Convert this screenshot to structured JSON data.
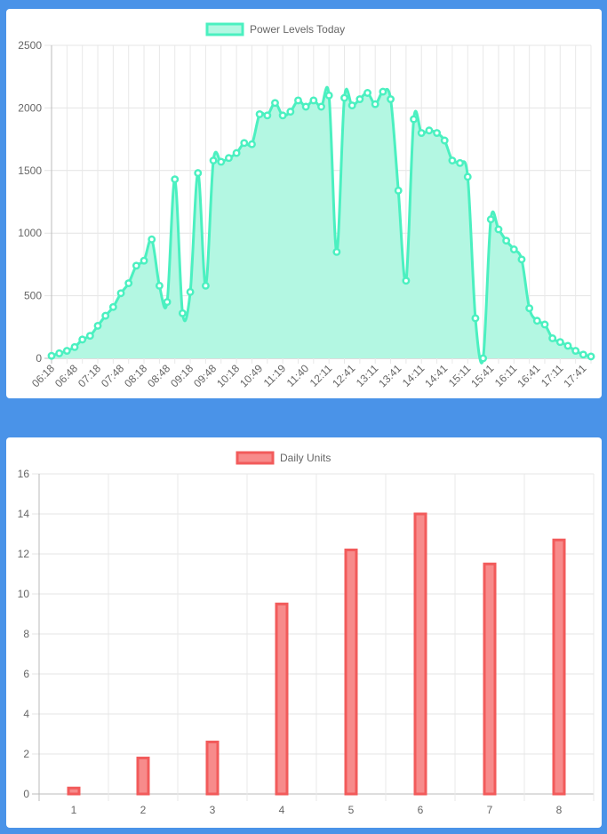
{
  "chart_data": [
    {
      "type": "area",
      "legend": "Power Levels Today",
      "colors": {
        "stroke": "#4bf0c0",
        "fill": "#b3f7e2"
      },
      "ylim": [
        0,
        2500
      ],
      "yticks": [
        0,
        500,
        1000,
        1500,
        2000,
        2500
      ],
      "x_tick_labels": [
        "06:18",
        "06:48",
        "07:18",
        "07:48",
        "08:18",
        "08:48",
        "09:18",
        "09:48",
        "10:18",
        "10:49",
        "11:19",
        "11:40",
        "12:11",
        "12:41",
        "13:11",
        "13:41",
        "14:11",
        "14:41",
        "15:11",
        "15:41",
        "16:11",
        "16:41",
        "17:11",
        "17:41"
      ],
      "values": [
        20,
        40,
        60,
        90,
        150,
        180,
        260,
        340,
        410,
        520,
        600,
        740,
        780,
        950,
        580,
        450,
        1430,
        360,
        530,
        1480,
        580,
        1580,
        1570,
        1600,
        1640,
        1720,
        1710,
        1950,
        1940,
        2040,
        1940,
        1970,
        2060,
        2010,
        2060,
        2010,
        2100,
        850,
        2080,
        2020,
        2070,
        2120,
        2030,
        2130,
        2070,
        1340,
        620,
        1910,
        1800,
        1820,
        1800,
        1740,
        1580,
        1560,
        1450,
        320,
        0,
        1110,
        1030,
        940,
        870,
        790,
        400,
        300,
        270,
        160,
        130,
        100,
        60,
        30,
        15
      ]
    },
    {
      "type": "bar",
      "legend": "Daily Units",
      "colors": {
        "stroke": "#f25b5b",
        "fill": "#f78b8b"
      },
      "ylim": [
        0,
        16
      ],
      "yticks": [
        0,
        2,
        4,
        6,
        8,
        10,
        12,
        14,
        16
      ],
      "categories": [
        "1",
        "2",
        "3",
        "4",
        "5",
        "6",
        "7",
        "8"
      ],
      "values": [
        0.3,
        1.8,
        2.6,
        9.5,
        12.2,
        14.0,
        11.5,
        12.7
      ]
    }
  ]
}
